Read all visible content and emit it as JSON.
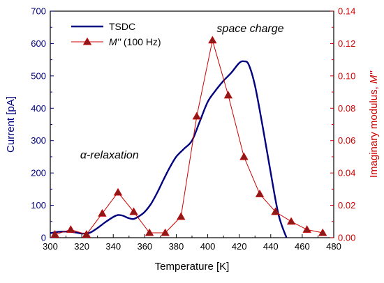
{
  "chart_data": {
    "type": "line",
    "x_axis": {
      "label": "Temperature [K]",
      "range": [
        300,
        480
      ],
      "ticks": [
        300,
        320,
        340,
        360,
        380,
        400,
        420,
        440,
        460,
        480
      ]
    },
    "y_axis_left": {
      "label": "Current [pA]",
      "range": [
        0,
        700
      ],
      "ticks": [
        0,
        100,
        200,
        300,
        400,
        500,
        600,
        700
      ],
      "color": "#000080"
    },
    "y_axis_right": {
      "label_prefix": "Imaginary modulus, ",
      "label_symbol": "M''",
      "range": [
        0,
        0.14
      ],
      "ticks": [
        "0.00",
        "0.02",
        "0.04",
        "0.06",
        "0.08",
        "0.10",
        "0.12",
        "0.14"
      ],
      "color": "#cc0000"
    },
    "series": [
      {
        "name": "TSDC",
        "axis": "left",
        "color": "#000080",
        "style": "line",
        "x": [
          300,
          305,
          310,
          315,
          320,
          325,
          330,
          335,
          340,
          343,
          346,
          350,
          353,
          356,
          360,
          364,
          368,
          372,
          376,
          380,
          385,
          390,
          395,
          400,
          405,
          410,
          415,
          420,
          423,
          426,
          430,
          435,
          440,
          445,
          450
        ],
        "y": [
          14,
          18,
          19,
          17,
          13,
          15,
          30,
          48,
          64,
          70,
          68,
          60,
          58,
          65,
          80,
          105,
          140,
          180,
          218,
          250,
          275,
          300,
          360,
          420,
          455,
          485,
          510,
          540,
          545,
          535,
          470,
          340,
          200,
          70,
          0
        ]
      },
      {
        "name_symbol": "M''",
        "name_suffix": " (100 Hz)",
        "axis": "right",
        "color": "#cc0000",
        "marker_color": "#8b1a1a",
        "style": "line+triangle",
        "x": [
          303,
          313,
          323,
          333,
          343,
          353,
          363,
          373,
          383,
          393,
          403,
          413,
          423,
          433,
          443,
          453,
          463,
          473
        ],
        "y": [
          0.002,
          0.005,
          0.002,
          0.015,
          0.028,
          0.016,
          0.003,
          0.003,
          0.013,
          0.075,
          0.122,
          0.088,
          0.05,
          0.027,
          0.016,
          0.01,
          0.005,
          0.003
        ]
      }
    ],
    "annotations": [
      {
        "symbol": "α",
        "text": "-relaxation",
        "x": 319,
        "y": 245
      },
      {
        "text": "space charge",
        "x": 427,
        "y": 635
      }
    ],
    "legend": {
      "placement": "top-left",
      "tsdc_label": "TSDC",
      "mod_symbol": "M''",
      "mod_suffix": " (100 Hz)"
    },
    "grid": false
  }
}
